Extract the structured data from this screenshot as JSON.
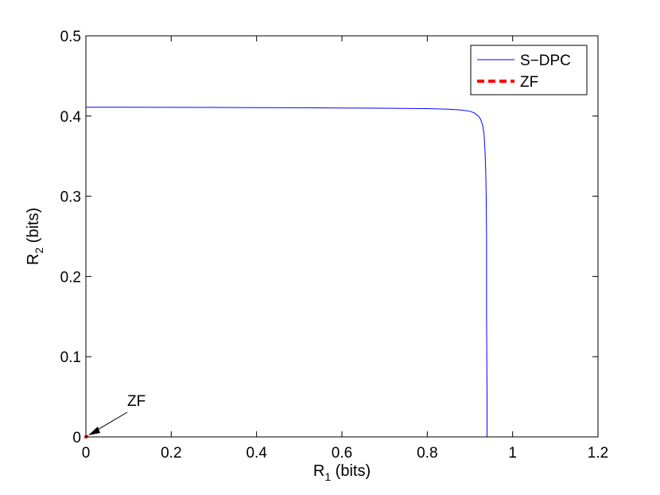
{
  "chart_data": {
    "type": "line",
    "title": "",
    "xlabel": {
      "main": "R",
      "sub": "1",
      "rest": " (bits)"
    },
    "ylabel": {
      "main": "R",
      "sub": "2",
      "rest": " (bits)"
    },
    "xlim": [
      0,
      1.2
    ],
    "ylim": [
      0,
      0.5
    ],
    "xticks": [
      0,
      0.2,
      0.4,
      0.6,
      0.8,
      1,
      1.2
    ],
    "xtick_labels": [
      "0",
      "0.2",
      "0.4",
      "0.6",
      "0.8",
      "1",
      "1.2"
    ],
    "yticks": [
      0,
      0.1,
      0.2,
      0.3,
      0.4,
      0.5
    ],
    "ytick_labels": [
      "0",
      "0.1",
      "0.2",
      "0.3",
      "0.4",
      "0.5"
    ],
    "grid": false,
    "legend_position": "top-right",
    "series": [
      {
        "name": "S−DPC",
        "color": "#0000ff",
        "style": "solid",
        "x": [
          0,
          0.1,
          0.2,
          0.3,
          0.4,
          0.5,
          0.6,
          0.7,
          0.8,
          0.85,
          0.88,
          0.9,
          0.91,
          0.92,
          0.925,
          0.93,
          0.933,
          0.935,
          0.937,
          0.938,
          0.939,
          0.939,
          0.94,
          0.94
        ],
        "y": [
          0.411,
          0.4109,
          0.4108,
          0.4107,
          0.4105,
          0.4103,
          0.41,
          0.4097,
          0.4092,
          0.4085,
          0.4075,
          0.406,
          0.404,
          0.4,
          0.396,
          0.388,
          0.378,
          0.36,
          0.33,
          0.3,
          0.25,
          0.15,
          0.05,
          0
        ]
      },
      {
        "name": "ZF",
        "color": "#ff0000",
        "style": "dashed",
        "x": [
          0,
          0.002
        ],
        "y": [
          0,
          0.0005
        ]
      }
    ],
    "annotations": [
      {
        "text": "ZF",
        "target_x": 0,
        "target_y": 0
      }
    ]
  }
}
